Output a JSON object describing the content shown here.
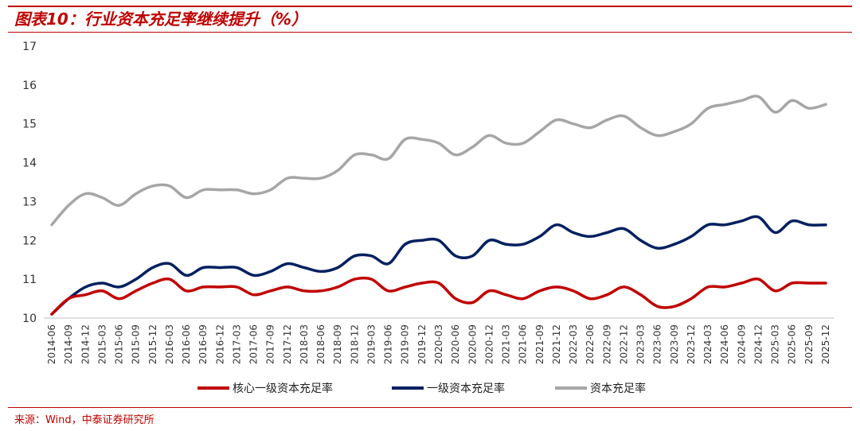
{
  "header": {
    "title": "图表10：行业资本充足率继续提升（%）"
  },
  "footer": {
    "source": "来源：Wind，中泰证券研究所"
  },
  "chart_data": {
    "type": "line",
    "title": "图表10：行业资本充足率继续提升（%）",
    "xlabel": "",
    "ylabel": "",
    "ylim": [
      10,
      17
    ],
    "yticks": [
      10,
      11,
      12,
      13,
      14,
      15,
      16,
      17
    ],
    "legend_position": "bottom",
    "categories": [
      "2014-06",
      "2014-09",
      "2014-12",
      "2015-03",
      "2015-06",
      "2015-09",
      "2015-12",
      "2016-03",
      "2016-06",
      "2016-09",
      "2016-12",
      "2017-03",
      "2017-06",
      "2017-09",
      "2017-12",
      "2018-03",
      "2018-06",
      "2018-09",
      "2018-12",
      "2019-03",
      "2019-06",
      "2019-09",
      "2019-12",
      "2020-03",
      "2020-06",
      "2020-09",
      "2020-12",
      "2021-03",
      "2021-06",
      "2021-09",
      "2021-12",
      "2022-03",
      "2022-06",
      "2022-09",
      "2022-12",
      "2023-03",
      "2023-06",
      "2023-09",
      "2023-12",
      "2024-03",
      "2024-06",
      "2024-09",
      "2024-12",
      "2025-03",
      "2025-06",
      "2025-09",
      "2025-12"
    ],
    "series": [
      {
        "name": "核心一级资本充足率",
        "color": "#c00000",
        "values": [
          10.1,
          10.5,
          10.6,
          10.7,
          10.5,
          10.7,
          10.9,
          11.0,
          10.7,
          10.8,
          10.8,
          10.8,
          10.6,
          10.7,
          10.8,
          10.7,
          10.7,
          10.8,
          11.0,
          11.0,
          10.7,
          10.8,
          10.9,
          10.9,
          10.5,
          10.4,
          10.7,
          10.6,
          10.5,
          10.7,
          10.8,
          10.7,
          10.5,
          10.6,
          10.8,
          10.6,
          10.3,
          10.3,
          10.5,
          10.8,
          10.8,
          10.9,
          11.0,
          10.7,
          10.9,
          10.9,
          10.9
        ]
      },
      {
        "name": "一级资本充足率",
        "color": "#002060",
        "values": [
          10.1,
          10.5,
          10.8,
          10.9,
          10.8,
          11.0,
          11.3,
          11.4,
          11.1,
          11.3,
          11.3,
          11.3,
          11.1,
          11.2,
          11.4,
          11.3,
          11.2,
          11.3,
          11.6,
          11.6,
          11.4,
          11.9,
          12.0,
          12.0,
          11.6,
          11.6,
          12.0,
          11.9,
          11.9,
          12.1,
          12.4,
          12.2,
          12.1,
          12.2,
          12.3,
          12.0,
          11.8,
          11.9,
          12.1,
          12.4,
          12.4,
          12.5,
          12.6,
          12.2,
          12.5,
          12.4,
          12.4
        ]
      },
      {
        "name": "资本充足率",
        "color": "#a6a6a6",
        "values": [
          12.4,
          12.9,
          13.2,
          13.1,
          12.9,
          13.2,
          13.4,
          13.4,
          13.1,
          13.3,
          13.3,
          13.3,
          13.2,
          13.3,
          13.6,
          13.6,
          13.6,
          13.8,
          14.2,
          14.2,
          14.1,
          14.6,
          14.6,
          14.5,
          14.2,
          14.4,
          14.7,
          14.5,
          14.5,
          14.8,
          15.1,
          15.0,
          14.9,
          15.1,
          15.2,
          14.9,
          14.7,
          14.8,
          15.0,
          15.4,
          15.5,
          15.6,
          15.7,
          15.3,
          15.6,
          15.4,
          15.5
        ]
      }
    ]
  }
}
